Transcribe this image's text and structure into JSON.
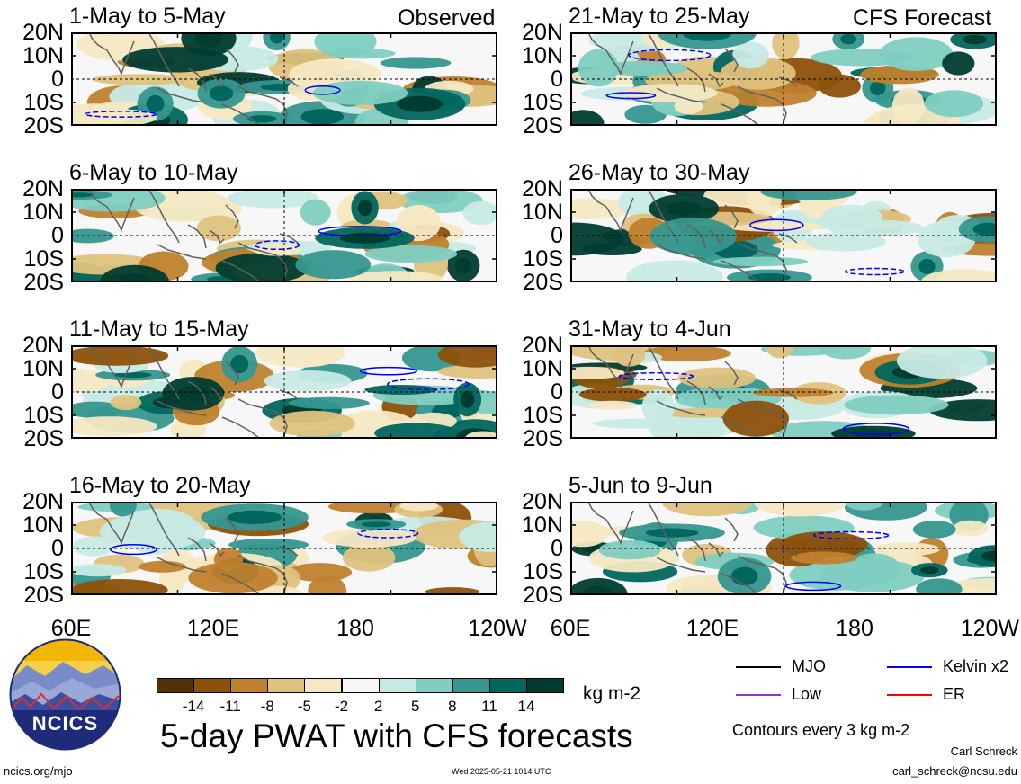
{
  "chart_data": {
    "type": "heatmap",
    "title": "5-day PWAT with CFS forecasts",
    "variable": "PWAT anomaly",
    "units": "kg m-2",
    "columns": [
      {
        "tag": "Observed",
        "panels": [
          "1-May to 5-May",
          "6-May to 10-May",
          "11-May to 15-May",
          "16-May to 20-May"
        ]
      },
      {
        "tag": "CFS Forecast",
        "panels": [
          "21-May to 25-May",
          "26-May to 30-May",
          "31-May to 4-Jun",
          "5-Jun to 9-Jun"
        ]
      }
    ],
    "y_ticks": [
      "20N",
      "10N",
      "0",
      "10S",
      "20S"
    ],
    "x_ticks": [
      "60E",
      "120E",
      "180",
      "120W"
    ],
    "xlim": [
      "60E",
      "120W"
    ],
    "ylim": [
      "20S",
      "20N"
    ],
    "colorbar": {
      "ticks": [
        "-14",
        "-11",
        "-8",
        "-5",
        "-2",
        "2",
        "5",
        "8",
        "11",
        "14"
      ],
      "colors": [
        "#543005",
        "#8c510a",
        "#bf812d",
        "#dfc27d",
        "#f6e8c3",
        "#f7f7f7",
        "#c7eae5",
        "#80cdc1",
        "#35978f",
        "#01665e",
        "#003c30"
      ]
    },
    "legend": {
      "items": [
        {
          "label": "MJO",
          "color": "#000000"
        },
        {
          "label": "Kelvin x2",
          "color": "#0000ff"
        },
        {
          "label": "Low",
          "color": "#9933cc"
        },
        {
          "label": "ER",
          "color": "#ff0000"
        }
      ],
      "note": "Contours every 3 kg m-2",
      "placement": "bottom-right"
    }
  },
  "footer": {
    "logo_text": "NCICS",
    "url": "ncics.org/mjo",
    "timestamp": "Wed 2025-05-21 1014 UTC",
    "author": "Carl Schreck",
    "email": "carl_schreck@ncsu.edu"
  }
}
